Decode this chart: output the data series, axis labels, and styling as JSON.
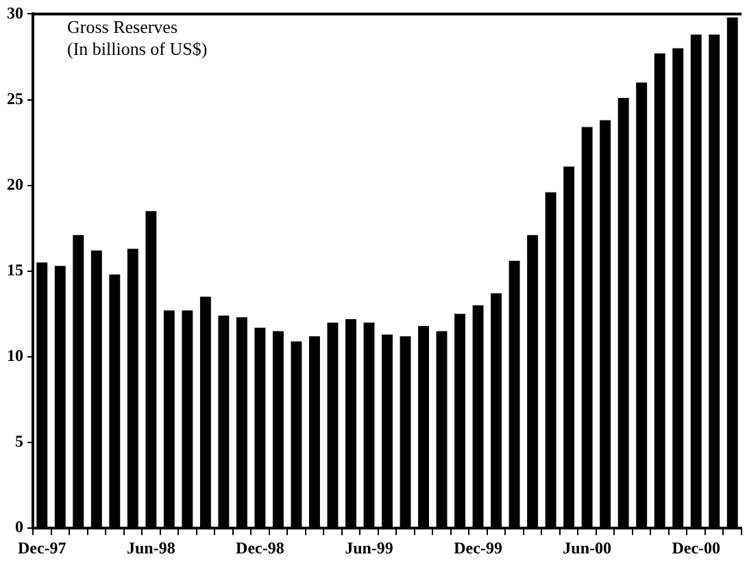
{
  "chart_data": {
    "type": "bar",
    "title": "Gross Reserves",
    "subtitle": "(In billions of US$)",
    "categories": [
      "Dec-97",
      null,
      null,
      null,
      null,
      null,
      "Jun-98",
      null,
      null,
      null,
      null,
      null,
      "Dec-98",
      null,
      null,
      null,
      null,
      null,
      "Jun-99",
      null,
      null,
      null,
      null,
      null,
      "Dec-99",
      null,
      null,
      null,
      null,
      null,
      "Jun-00",
      null,
      null,
      null,
      null,
      null,
      "Dec-00",
      null,
      null
    ],
    "values": [
      15.5,
      15.3,
      17.1,
      16.2,
      14.8,
      16.3,
      18.5,
      12.7,
      12.7,
      13.5,
      12.4,
      12.3,
      11.7,
      11.5,
      10.9,
      11.2,
      12.0,
      12.2,
      12.0,
      11.3,
      11.2,
      11.8,
      11.5,
      12.5,
      13.0,
      13.7,
      15.6,
      17.1,
      19.6,
      21.1,
      23.4,
      23.8,
      25.1,
      26.0,
      27.7,
      28.0,
      28.8,
      28.8,
      29.8
    ],
    "color": "#000000",
    "ylim": [
      0,
      30
    ],
    "yticks": [
      0,
      5,
      10,
      15,
      20,
      25,
      30
    ],
    "grid": false,
    "legend": false
  }
}
